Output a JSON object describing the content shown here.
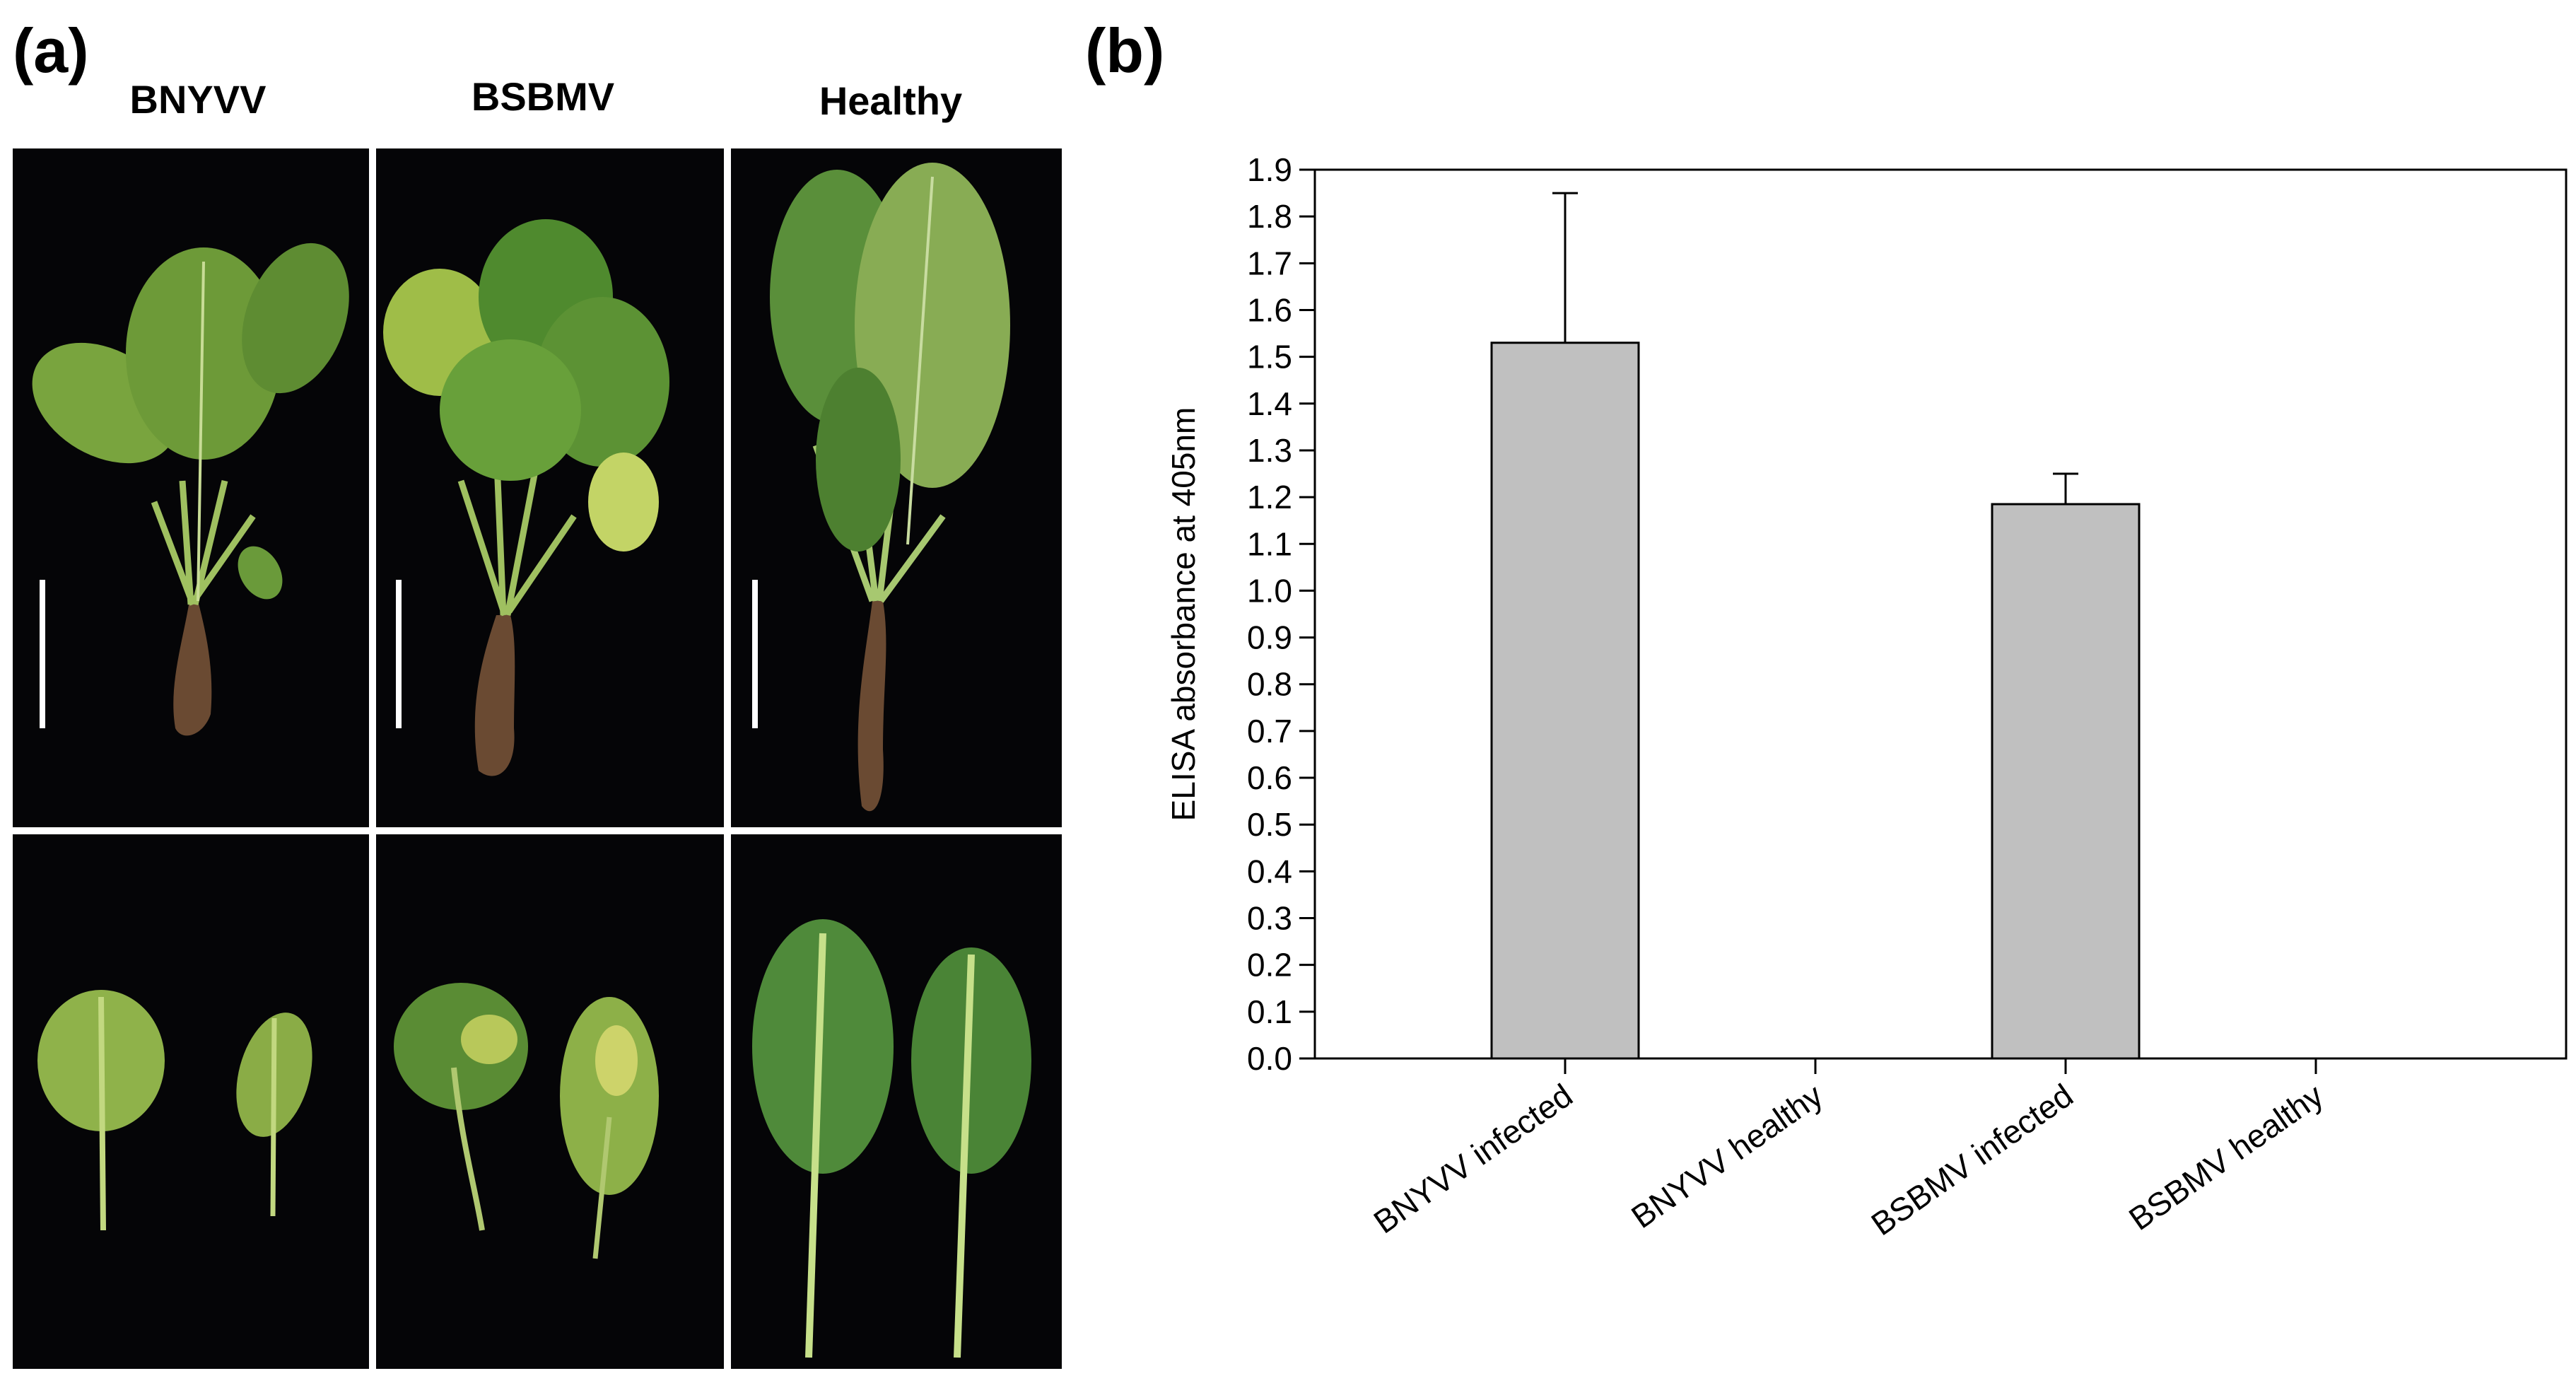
{
  "panel_a": {
    "label": "(a)",
    "columns": [
      "BNYVV",
      "BSBMV",
      "Healthy"
    ]
  },
  "panel_b": {
    "label": "(b)"
  },
  "chart_data": {
    "type": "bar",
    "title": "",
    "xlabel": "",
    "ylabel": "ELISA absorbance at 405nm",
    "categories": [
      "BNYVV infected",
      "BNYVV healthy",
      "BSBMV infected",
      "BSBMV healthy"
    ],
    "values": [
      1.53,
      0.0,
      1.185,
      0.0
    ],
    "error_upper": [
      0.32,
      0.0,
      0.065,
      0.0
    ],
    "ylim": [
      0.0,
      1.9
    ],
    "yticks": [
      "0.0",
      "0.1",
      "0.2",
      "0.3",
      "0.4",
      "0.5",
      "0.6",
      "0.7",
      "0.8",
      "0.9",
      "1.0",
      "1.1",
      "1.2",
      "1.3",
      "1.4",
      "1.5",
      "1.6",
      "1.7",
      "1.8",
      "1.9"
    ],
    "grid": false,
    "bar_color": "#c0c0c0",
    "bar_edge_color": "#000000"
  }
}
